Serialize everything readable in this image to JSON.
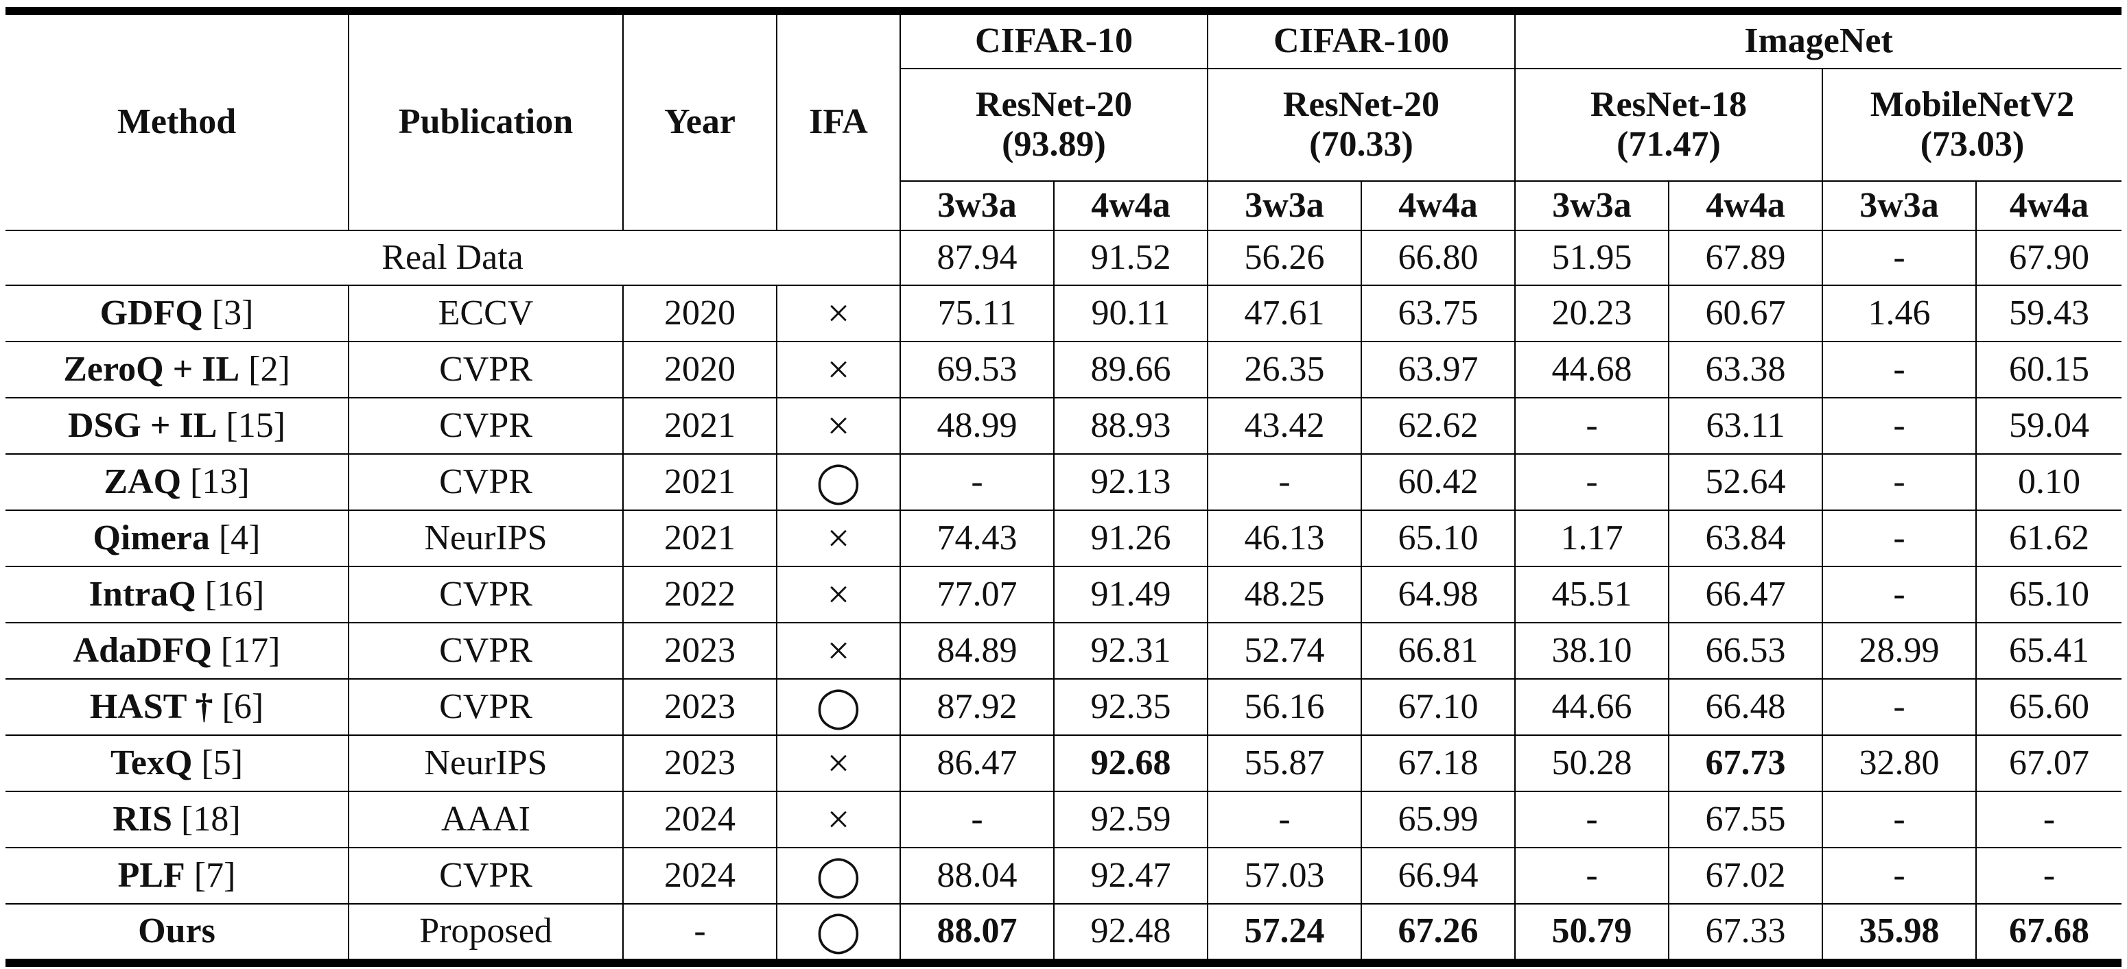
{
  "header": {
    "method": "Method",
    "publication": "Publication",
    "year": "Year",
    "ifa": "IFA",
    "datasets": [
      {
        "name": "CIFAR-10"
      },
      {
        "name": "CIFAR-100"
      },
      {
        "name": "ImageNet"
      }
    ],
    "models": [
      {
        "line1": "ResNet-20",
        "line2": "(93.89)"
      },
      {
        "line1": "ResNet-20",
        "line2": "(70.33)"
      },
      {
        "line1": "ResNet-18",
        "line2": "(71.47)"
      },
      {
        "line1": "MobileNetV2",
        "line2": "(73.03)"
      }
    ],
    "bits": [
      "3w3a",
      "4w4a",
      "3w3a",
      "4w4a",
      "3w3a",
      "4w4a",
      "3w3a",
      "4w4a"
    ]
  },
  "real_data": {
    "label": "Real Data",
    "values": [
      "87.94",
      "91.52",
      "56.26",
      "66.80",
      "51.95",
      "67.89",
      "-",
      "67.90"
    ]
  },
  "methods": [
    {
      "name": "GDFQ",
      "ref": " [3]",
      "pub": "ECCV",
      "year": "2020",
      "ifa": "×",
      "values": [
        "75.11",
        "90.11",
        "47.61",
        "63.75",
        "20.23",
        "60.67",
        "1.46",
        "59.43"
      ]
    },
    {
      "name": "ZeroQ + IL",
      "ref": " [2]",
      "pub": "CVPR",
      "year": "2020",
      "ifa": "×",
      "values": [
        "69.53",
        "89.66",
        "26.35",
        "63.97",
        "44.68",
        "63.38",
        "-",
        "60.15"
      ]
    },
    {
      "name": "DSG + IL",
      "ref": " [15]",
      "pub": "CVPR",
      "year": "2021",
      "ifa": "×",
      "values": [
        "48.99",
        "88.93",
        "43.42",
        "62.62",
        "-",
        "63.11",
        "-",
        "59.04"
      ]
    },
    {
      "name": "ZAQ",
      "ref": " [13]",
      "pub": "CVPR",
      "year": "2021",
      "ifa": "◯",
      "values": [
        "-",
        "92.13",
        "-",
        "60.42",
        "-",
        "52.64",
        "-",
        "0.10"
      ]
    },
    {
      "name": "Qimera",
      "ref": " [4]",
      "pub": "NeurIPS",
      "year": "2021",
      "ifa": "×",
      "values": [
        "74.43",
        "91.26",
        "46.13",
        "65.10",
        "1.17",
        "63.84",
        "-",
        "61.62"
      ]
    },
    {
      "name": "IntraQ",
      "ref": " [16]",
      "pub": "CVPR",
      "year": "2022",
      "ifa": "×",
      "values": [
        "77.07",
        "91.49",
        "48.25",
        "64.98",
        "45.51",
        "66.47",
        "-",
        "65.10"
      ]
    },
    {
      "name": "AdaDFQ",
      "ref": " [17]",
      "pub": "CVPR",
      "year": "2023",
      "ifa": "×",
      "values": [
        "84.89",
        "92.31",
        "52.74",
        "66.81",
        "38.10",
        "66.53",
        "28.99",
        "65.41"
      ]
    },
    {
      "name": "HAST †",
      "ref": " [6]",
      "pub": "CVPR",
      "year": "2023",
      "ifa": "◯",
      "values": [
        "87.92",
        "92.35",
        "56.16",
        "67.10",
        "44.66",
        "66.48",
        "-",
        "65.60"
      ]
    },
    {
      "name": "TexQ",
      "ref": " [5]",
      "pub": "NeurIPS",
      "year": "2023",
      "ifa": "×",
      "values": [
        "86.47",
        "92.68",
        "55.87",
        "67.18",
        "50.28",
        "67.73",
        "32.80",
        "67.07"
      ],
      "bold": [
        1,
        5
      ]
    },
    {
      "name": "RIS",
      "ref": " [18]",
      "pub": "AAAI",
      "year": "2024",
      "ifa": "×",
      "values": [
        "-",
        "92.59",
        "-",
        "65.99",
        "-",
        "67.55",
        "-",
        "-"
      ]
    },
    {
      "name": "PLF",
      "ref": " [7]",
      "pub": "CVPR",
      "year": "2024",
      "ifa": "◯",
      "values": [
        "88.04",
        "92.47",
        "57.03",
        "66.94",
        "-",
        "67.02",
        "-",
        "-"
      ]
    }
  ],
  "ours": {
    "name": "Ours",
    "pub": "Proposed",
    "year": "-",
    "ifa": "◯",
    "values": [
      "88.07",
      "92.48",
      "57.24",
      "67.26",
      "50.79",
      "67.33",
      "35.98",
      "67.68"
    ],
    "bold": [
      0,
      2,
      3,
      4,
      6,
      7
    ]
  }
}
